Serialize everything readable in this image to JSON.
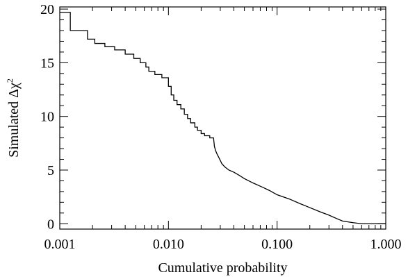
{
  "chart_data": {
    "type": "line",
    "title": "",
    "xlabel": "Cumulative probability",
    "ylabel": {
      "prefix": "Simulated ",
      "symbol": "Δχ",
      "superscript": "2"
    },
    "x_scale": "log",
    "xlim": [
      0.001,
      1.0
    ],
    "ylim": [
      -0.5,
      20.2
    ],
    "x_ticks": [
      0.001,
      0.01,
      0.1,
      1.0
    ],
    "x_tick_labels": [
      "0.001",
      "0.010",
      "0.100",
      "1.000"
    ],
    "y_ticks": [
      0,
      5,
      10,
      15,
      20
    ],
    "y_tick_labels": [
      "0",
      "5",
      "10",
      "15",
      "20"
    ],
    "grid": false,
    "line_color": "#000000",
    "series": [
      {
        "x": [
          0.001,
          0.00125,
          0.00125,
          0.0018,
          0.0018,
          0.0021,
          0.0021,
          0.0026,
          0.0026,
          0.0032,
          0.0032,
          0.004,
          0.004,
          0.0048,
          0.0048,
          0.0055,
          0.0055,
          0.0062,
          0.0062,
          0.0066,
          0.0066,
          0.0075,
          0.0075,
          0.0087,
          0.0087,
          0.01,
          0.01,
          0.0106,
          0.0106,
          0.0112,
          0.0112,
          0.012,
          0.012,
          0.013,
          0.013,
          0.014,
          0.014,
          0.015,
          0.015,
          0.016,
          0.016,
          0.0175,
          0.0175,
          0.0185,
          0.0185,
          0.02,
          0.02,
          0.0215,
          0.0215,
          0.024,
          0.024,
          0.026,
          0.0265,
          0.0272,
          0.028,
          0.029,
          0.03,
          0.031,
          0.033,
          0.036,
          0.04,
          0.045,
          0.05,
          0.06,
          0.07,
          0.085,
          0.1,
          0.13,
          0.16,
          0.2,
          0.25,
          0.3,
          0.35,
          0.4,
          0.5,
          0.6,
          0.7,
          0.85,
          1.0
        ],
        "y": [
          19.7,
          19.7,
          18.0,
          18.0,
          17.2,
          17.2,
          16.8,
          16.8,
          16.5,
          16.5,
          16.2,
          16.2,
          15.8,
          15.8,
          15.4,
          15.4,
          15.0,
          15.0,
          14.6,
          14.6,
          14.2,
          14.2,
          13.9,
          13.9,
          13.6,
          13.6,
          12.8,
          12.8,
          12.0,
          12.0,
          11.5,
          11.5,
          11.1,
          11.1,
          10.7,
          10.7,
          10.2,
          10.2,
          9.8,
          9.8,
          9.4,
          9.4,
          9.0,
          9.0,
          8.7,
          8.7,
          8.4,
          8.4,
          8.2,
          8.2,
          8.0,
          8.0,
          7.2,
          6.8,
          6.5,
          6.2,
          5.9,
          5.6,
          5.3,
          5.0,
          4.8,
          4.5,
          4.2,
          3.8,
          3.5,
          3.1,
          2.7,
          2.3,
          1.9,
          1.5,
          1.1,
          0.8,
          0.5,
          0.25,
          0.1,
          0.0,
          0.0,
          0.0,
          0.0
        ]
      }
    ]
  }
}
